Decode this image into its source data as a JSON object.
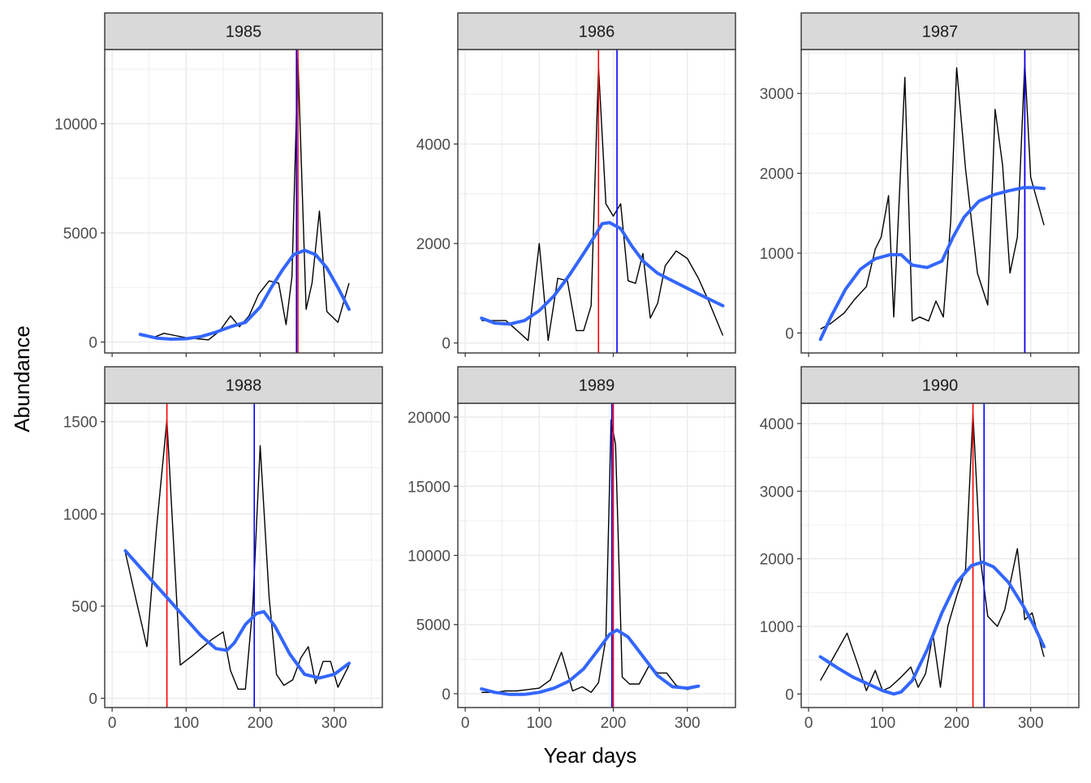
{
  "chart_data": {
    "type": "line",
    "facet_layout": "3 columns x 2 rows",
    "xlabel": "Year days",
    "ylabel": "Abundance",
    "xlim": [
      -10,
      365
    ],
    "x_ticks": [
      0,
      100,
      200,
      300
    ],
    "x_ticks_shown_on": "bottom row only",
    "grid": true,
    "theme": "black-and-white with grey facet strips",
    "colors": {
      "observed": "#000000",
      "smooth": "#3366ff",
      "red_marker": "#ff0000",
      "blue_marker": "#0000ff",
      "strip_fill": "#d9d9d9",
      "grid": "#ebebeb"
    },
    "series_names": {
      "observed": "",
      "smooth": "",
      "red_marker": "",
      "blue_marker": ""
    },
    "panels": [
      {
        "title": "1985",
        "ylim": [
          -500,
          13400
        ],
        "y_ticks": [
          0,
          5000,
          10000
        ],
        "tick_labels": [
          "0",
          "5000",
          "10000"
        ],
        "red_line": 251,
        "blue_line": 249,
        "observed": {
          "x": [
            38,
            55,
            70,
            85,
            100,
            115,
            130,
            145,
            160,
            172,
            185,
            198,
            212,
            225,
            235,
            243,
            251,
            262,
            270,
            280,
            290,
            305,
            320
          ],
          "y": [
            300,
            200,
            400,
            300,
            200,
            150,
            100,
            500,
            1200,
            700,
            1200,
            2200,
            2800,
            2700,
            800,
            3000,
            13000,
            1500,
            2700,
            6000,
            1400,
            900,
            2700
          ]
        },
        "smooth": {
          "x": [
            38,
            60,
            80,
            100,
            120,
            140,
            160,
            180,
            200,
            215,
            230,
            245,
            260,
            275,
            290,
            305,
            320
          ],
          "y": [
            350,
            180,
            130,
            150,
            250,
            450,
            700,
            900,
            1600,
            2500,
            3300,
            4000,
            4200,
            4000,
            3400,
            2500,
            1500
          ]
        }
      },
      {
        "title": "1986",
        "ylim": [
          -200,
          5900
        ],
        "y_ticks": [
          0,
          2000,
          4000
        ],
        "tick_labels": [
          "0",
          "2000",
          "4000"
        ],
        "red_line": 180,
        "blue_line": 205,
        "observed": {
          "x": [
            22,
            40,
            55,
            70,
            85,
            100,
            112,
            125,
            138,
            150,
            160,
            170,
            180,
            190,
            200,
            210,
            220,
            230,
            240,
            250,
            260,
            270,
            285,
            300,
            315,
            330,
            348
          ],
          "y": [
            450,
            450,
            450,
            250,
            50,
            2000,
            50,
            1300,
            1250,
            250,
            250,
            750,
            5550,
            2800,
            2550,
            2800,
            1250,
            1200,
            1800,
            500,
            800,
            1550,
            1850,
            1700,
            1300,
            800,
            150
          ]
        },
        "smooth": {
          "x": [
            22,
            40,
            60,
            80,
            100,
            120,
            140,
            160,
            175,
            185,
            195,
            210,
            225,
            240,
            260,
            280,
            300,
            320,
            348
          ],
          "y": [
            500,
            400,
            380,
            450,
            650,
            950,
            1350,
            1800,
            2150,
            2400,
            2420,
            2300,
            1950,
            1650,
            1400,
            1250,
            1100,
            950,
            750
          ]
        }
      },
      {
        "title": "1987",
        "ylim": [
          -250,
          3550
        ],
        "y_ticks": [
          0,
          1000,
          2000,
          3000
        ],
        "tick_labels": [
          "0",
          "1000",
          "2000",
          "3000"
        ],
        "red_line": 292,
        "blue_line": 292,
        "observed": {
          "x": [
            16,
            30,
            48,
            62,
            78,
            90,
            98,
            108,
            115,
            130,
            140,
            150,
            162,
            172,
            182,
            192,
            200,
            212,
            228,
            242,
            252,
            262,
            272,
            282,
            292,
            300,
            318
          ],
          "y": [
            50,
            120,
            250,
            420,
            580,
            1050,
            1200,
            1720,
            200,
            3200,
            150,
            200,
            150,
            400,
            200,
            1400,
            3320,
            2050,
            750,
            350,
            2800,
            2100,
            750,
            1200,
            3380,
            1950,
            1350
          ]
        },
        "smooth": {
          "x": [
            16,
            30,
            50,
            70,
            90,
            110,
            125,
            140,
            160,
            180,
            195,
            210,
            230,
            250,
            270,
            290,
            305,
            318
          ],
          "y": [
            -80,
            200,
            550,
            800,
            930,
            980,
            980,
            850,
            820,
            900,
            1200,
            1450,
            1650,
            1730,
            1780,
            1820,
            1820,
            1810
          ]
        }
      },
      {
        "title": "1988",
        "ylim": [
          -50,
          1600
        ],
        "y_ticks": [
          0,
          500,
          1000,
          1500
        ],
        "tick_labels": [
          "0",
          "500",
          "1000",
          "1500"
        ],
        "red_line": 74,
        "blue_line": 192,
        "observed": {
          "x": [
            18,
            32,
            47,
            60,
            74,
            92,
            108,
            120,
            135,
            150,
            160,
            170,
            180,
            190,
            200,
            212,
            222,
            232,
            244,
            255,
            265,
            275,
            285,
            295,
            305,
            320
          ],
          "y": [
            790,
            540,
            280,
            920,
            1510,
            180,
            230,
            270,
            320,
            360,
            150,
            50,
            50,
            500,
            1370,
            550,
            130,
            70,
            100,
            220,
            280,
            80,
            200,
            200,
            60,
            180
          ]
        },
        "smooth": {
          "x": [
            18,
            40,
            60,
            80,
            100,
            120,
            140,
            155,
            165,
            180,
            195,
            205,
            220,
            240,
            260,
            280,
            300,
            320
          ],
          "y": [
            800,
            700,
            610,
            520,
            430,
            340,
            270,
            260,
            300,
            400,
            460,
            470,
            390,
            240,
            130,
            110,
            130,
            190
          ]
        }
      },
      {
        "title": "1989",
        "ylim": [
          -1000,
          21000
        ],
        "y_ticks": [
          0,
          5000,
          10000,
          15000,
          20000
        ],
        "tick_labels": [
          "0",
          "5000",
          "10000",
          "15000",
          "20000"
        ],
        "red_line": 200,
        "blue_line": 198,
        "observed": {
          "x": [
            22,
            40,
            55,
            70,
            85,
            100,
            115,
            130,
            145,
            158,
            170,
            180,
            190,
            197,
            203,
            212,
            222,
            235,
            248,
            260,
            272,
            285,
            300,
            315
          ],
          "y": [
            100,
            100,
            200,
            200,
            300,
            400,
            1000,
            3000,
            200,
            500,
            100,
            800,
            4000,
            19800,
            18000,
            1200,
            700,
            700,
            2000,
            1500,
            1500,
            600,
            300,
            500
          ]
        },
        "smooth": {
          "x": [
            22,
            40,
            60,
            80,
            100,
            120,
            140,
            160,
            180,
            195,
            205,
            220,
            240,
            260,
            280,
            300,
            315
          ],
          "y": [
            350,
            100,
            -50,
            -50,
            100,
            400,
            900,
            1800,
            3200,
            4300,
            4600,
            4100,
            2700,
            1300,
            500,
            400,
            550
          ]
        }
      },
      {
        "title": "1990",
        "ylim": [
          -200,
          4300
        ],
        "y_ticks": [
          0,
          1000,
          2000,
          3000,
          4000
        ],
        "tick_labels": [
          "0",
          "1000",
          "2000",
          "3000",
          "4000"
        ],
        "red_line": 222,
        "blue_line": 237,
        "observed": {
          "x": [
            16,
            34,
            52,
            66,
            78,
            90,
            100,
            110,
            125,
            138,
            148,
            158,
            168,
            178,
            188,
            200,
            212,
            222,
            232,
            242,
            255,
            265,
            282,
            292,
            302,
            318
          ],
          "y": [
            200,
            550,
            900,
            450,
            50,
            350,
            50,
            100,
            250,
            400,
            100,
            300,
            880,
            100,
            1000,
            1450,
            1850,
            4150,
            2000,
            1150,
            1000,
            1250,
            2150,
            1100,
            1200,
            550
          ]
        },
        "smooth": {
          "x": [
            16,
            40,
            60,
            80,
            100,
            115,
            125,
            140,
            160,
            180,
            200,
            220,
            235,
            250,
            270,
            290,
            305,
            318
          ],
          "y": [
            550,
            380,
            250,
            150,
            50,
            0,
            30,
            200,
            650,
            1200,
            1650,
            1900,
            1950,
            1880,
            1650,
            1300,
            1000,
            700
          ]
        }
      }
    ]
  }
}
